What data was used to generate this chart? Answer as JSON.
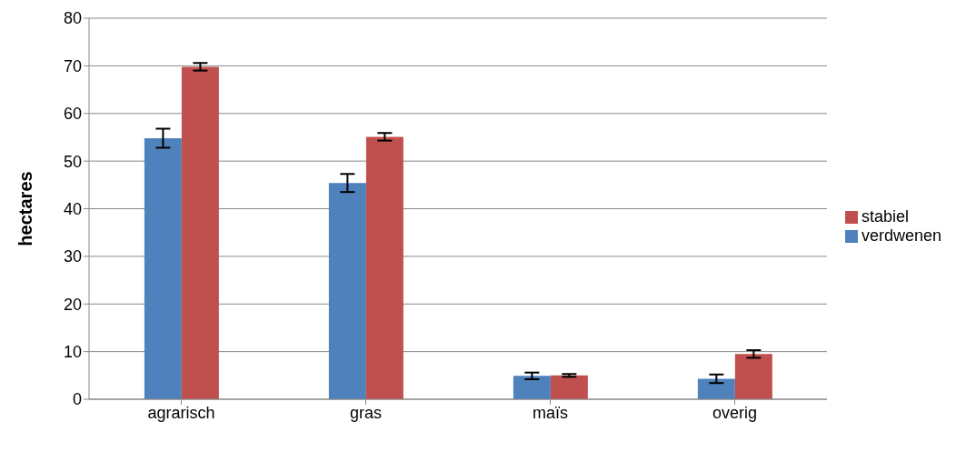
{
  "chart_data": {
    "type": "bar",
    "ylabel": "hectares",
    "categories": [
      "agrarisch",
      "gras",
      "maïs",
      "overig"
    ],
    "series": [
      {
        "name": "verdwenen",
        "color": "#4f81bd",
        "values": [
          54.8,
          45.4,
          4.9,
          4.3
        ],
        "errors": [
          2,
          1.9,
          0.7,
          0.9
        ]
      },
      {
        "name": "stabiel",
        "color": "#c0504d",
        "values": [
          69.8,
          55.1,
          5,
          9.5
        ],
        "errors": [
          0.8,
          0.8,
          0.3,
          0.8
        ]
      }
    ],
    "ylim": [
      0,
      80
    ],
    "yticks": [
      0,
      10,
      20,
      30,
      40,
      50,
      60,
      70,
      80
    ],
    "grid": "y",
    "legend": "right"
  }
}
